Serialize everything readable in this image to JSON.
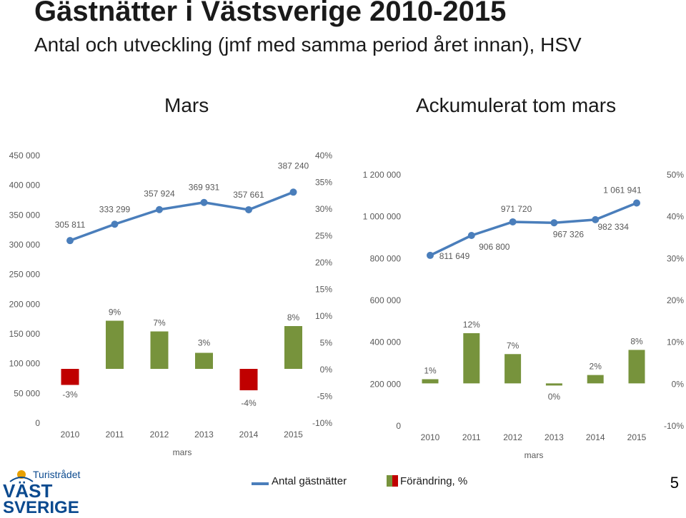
{
  "page": {
    "title": "Gästnätter i Västsverige 2010-2015",
    "subtitle": "Antal och utveckling (jmf med samma period året innan), HSV",
    "page_number": "5"
  },
  "logo": {
    "top": "Turistrådet",
    "line1": "VÄST",
    "line2": "SVERIGE"
  },
  "legend": {
    "line_label": "Antal gästnätter",
    "bar_label": "Förändring, %"
  },
  "colors": {
    "line": "#4a7ebb",
    "bar_positive": "#77933c",
    "bar_negative": "#c00000",
    "text": "#595959"
  },
  "chart_data": [
    {
      "type": "combo",
      "title": "Mars",
      "xlabel": "mars",
      "categories": [
        "2010",
        "2011",
        "2012",
        "2013",
        "2014",
        "2015"
      ],
      "line": {
        "values": [
          305811,
          333299,
          357924,
          369931,
          357661,
          387240
        ],
        "labels": [
          "305 811",
          "333 299",
          "357 924",
          "369 931",
          "357 661",
          "387 240"
        ],
        "ylim": [
          0,
          450000
        ],
        "ticks": [
          "0",
          "50 000",
          "100 000",
          "150 000",
          "200 000",
          "250 000",
          "300 000",
          "350 000",
          "400 000",
          "450 000"
        ]
      },
      "bars": {
        "values": [
          -3,
          9,
          7,
          3,
          -4,
          8
        ],
        "labels": [
          "-3%",
          "9%",
          "7%",
          "3%",
          "-4%",
          "8%"
        ],
        "ylim": [
          -10,
          40
        ],
        "ticks": [
          "-10%",
          "-5%",
          "0%",
          "5%",
          "10%",
          "15%",
          "20%",
          "25%",
          "30%",
          "35%",
          "40%"
        ]
      }
    },
    {
      "type": "combo",
      "title": "Ackumulerat tom mars",
      "xlabel": "mars",
      "categories": [
        "2010",
        "2011",
        "2012",
        "2013",
        "2014",
        "2015"
      ],
      "line": {
        "values": [
          811649,
          906800,
          971720,
          967326,
          982334,
          1061941
        ],
        "labels": [
          "811 649",
          "906 800",
          "971 720",
          "967 326",
          "982 334",
          "1 061 941"
        ],
        "ylim": [
          0,
          1200000
        ],
        "ticks": [
          "0",
          "200 000",
          "400 000",
          "600 000",
          "800 000",
          "1 000 000",
          "1 200 000"
        ]
      },
      "bars": {
        "values": [
          1,
          12,
          7,
          0,
          2,
          8
        ],
        "labels": [
          "1%",
          "12%",
          "7%",
          "0%",
          "2%",
          "8%"
        ],
        "ylim": [
          -10,
          50
        ],
        "ticks": [
          "-10%",
          "0%",
          "10%",
          "20%",
          "30%",
          "40%",
          "50%"
        ]
      }
    }
  ]
}
